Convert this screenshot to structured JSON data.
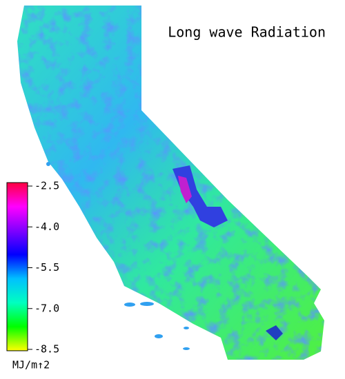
{
  "chart_data": {
    "type": "map",
    "title": "Long wave Radiation",
    "colorbar": {
      "label": "MJ/m↑2",
      "lim": [
        -8.5,
        -2.5
      ],
      "ticks": [
        -2.5,
        {
          "value": -4,
          "label": "-4.0"
        },
        -5.5,
        {
          "value": -7,
          "label": "-7.0"
        },
        -8.5
      ],
      "colors": [
        "#ff0040",
        "#ff00ff",
        "#8000ff",
        "#0000ff",
        "#00c0ff",
        "#00ffc0",
        "#00ff00",
        "#ffff00"
      ]
    }
  }
}
